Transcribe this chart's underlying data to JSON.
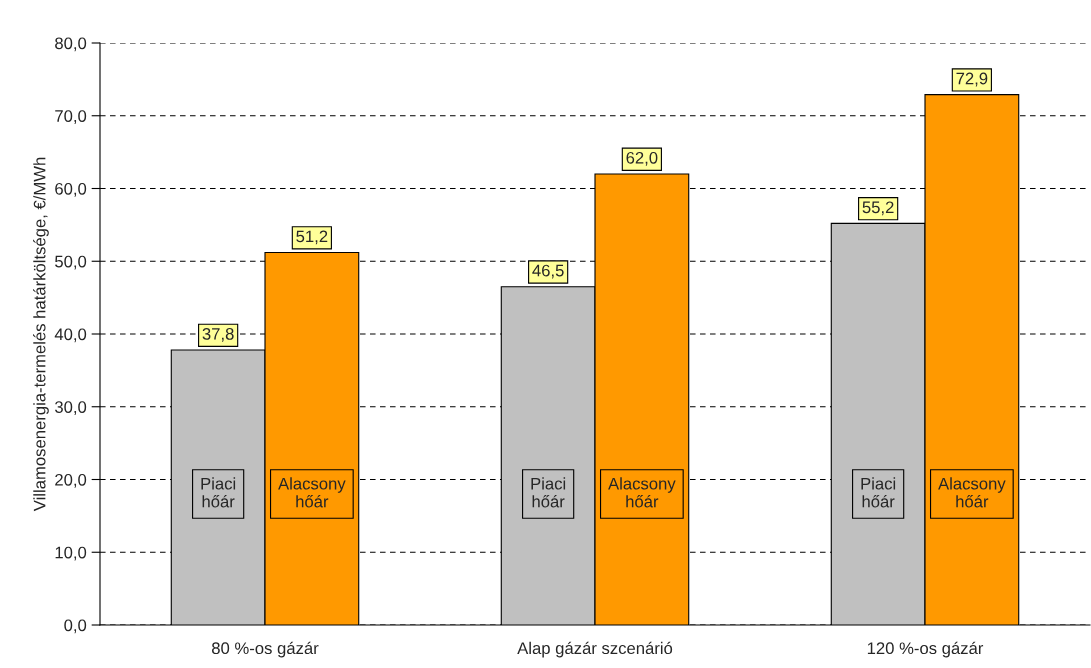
{
  "chart_data": {
    "type": "bar",
    "ylabel": "Villamosenergia-termelés határköltsége, €/MWh",
    "categories": [
      "80 %-os gázár",
      "Alap gázár szcenárió",
      "120 %-os gázár"
    ],
    "series": [
      {
        "name": "Piaci hőár",
        "color": "#c0c0c0",
        "values": [
          37.8,
          46.5,
          55.2
        ],
        "value_labels": [
          "37,8",
          "46,5",
          "55,2"
        ]
      },
      {
        "name": "Alacsony hőár",
        "color": "#ff9900",
        "values": [
          51.2,
          62.0,
          72.9
        ],
        "value_labels": [
          "51,2",
          "62,0",
          "72,9"
        ]
      }
    ],
    "ylim": [
      0,
      80
    ],
    "yticks": [
      {
        "value": 0,
        "label": "0,0"
      },
      {
        "value": 10,
        "label": "10,0"
      },
      {
        "value": 20,
        "label": "20,0"
      },
      {
        "value": 30,
        "label": "30,0"
      },
      {
        "value": 40,
        "label": "40,0"
      },
      {
        "value": 50,
        "label": "50,0"
      },
      {
        "value": 60,
        "label": "60,0"
      },
      {
        "value": 70,
        "label": "70,0"
      },
      {
        "value": 80,
        "label": "80,0"
      }
    ],
    "grid": "y",
    "legend": false
  }
}
